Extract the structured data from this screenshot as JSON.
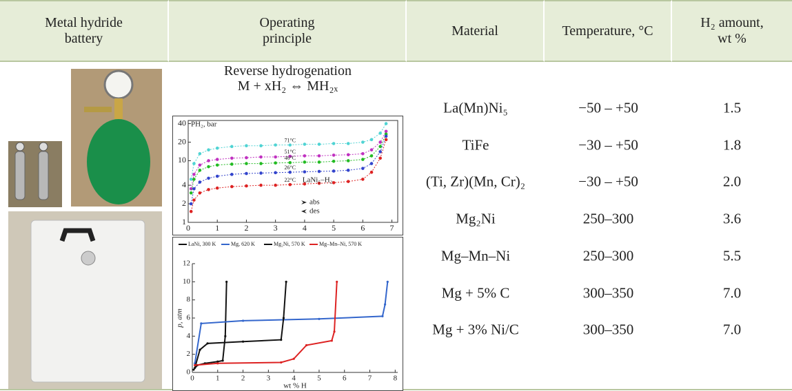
{
  "header": [
    "Metal hydride battery",
    "Operating principle",
    "Material",
    "Temperature, °C",
    "H₂ amount, wt %"
  ],
  "principle": {
    "title": "Reverse hydrogenation",
    "equation": "M + xH₂ ⇔ MH₂ₓ"
  },
  "rows": [
    [
      "La(Mn)Ni₅",
      "−50 – +50",
      "1.5"
    ],
    [
      "TiFe",
      "−30 – +50",
      "1.8"
    ],
    [
      "(Ti, Zr)(Mn, Cr)₂",
      "−30 – +50",
      "2.0"
    ],
    [
      "Mg₂Ni",
      "250–300",
      "3.6"
    ],
    [
      "Mg–Mn–Ni",
      "250–300",
      "5.5"
    ],
    [
      "Mg + 5% C",
      "300–350",
      "7.0"
    ],
    [
      "Mg + 3% Ni/C",
      "300–350",
      "7.0"
    ]
  ],
  "chart_data": [
    {
      "type": "line",
      "y_label": "PH₂, bar",
      "log_y": true,
      "annotation": "LaNi₅–H₂",
      "legend": [
        "abs",
        "des"
      ],
      "x": [
        0.1,
        0.2,
        0.4,
        0.7,
        1,
        1.5,
        2,
        2.5,
        3,
        3.5,
        4,
        4.5,
        5,
        5.5,
        6,
        6.3,
        6.6,
        6.8
      ],
      "xlim": [
        0,
        7.2
      ],
      "xticks": [
        0,
        1,
        2,
        3,
        4,
        5,
        6,
        7
      ],
      "ylim": [
        1,
        45
      ],
      "yticks": [
        1,
        2,
        4,
        10,
        20,
        40
      ],
      "series": [
        {
          "name": "71°C",
          "color": "#4fd3d3",
          "values": [
            5,
            9,
            13,
            15,
            16,
            17,
            17.5,
            17.5,
            18,
            18,
            18.5,
            18.5,
            19,
            19,
            20,
            22,
            28,
            40
          ]
        },
        {
          "name": "51°C",
          "color": "#c030c0",
          "values": [
            3.5,
            6,
            8.5,
            10,
            10.5,
            11,
            11.2,
            11.5,
            11.5,
            11.8,
            12,
            12,
            12.3,
            12.5,
            13,
            15,
            20,
            30
          ]
        },
        {
          "name": "46°C",
          "color": "#22bb22",
          "values": [
            3,
            5,
            7,
            8,
            8.5,
            8.8,
            9,
            9,
            9.2,
            9.3,
            9.5,
            9.5,
            9.8,
            10,
            10.5,
            12,
            17,
            27
          ]
        },
        {
          "name": "26°C",
          "color": "#3344cc",
          "values": [
            2,
            3.5,
            4.5,
            5.2,
            5.6,
            6,
            6.2,
            6.3,
            6.4,
            6.5,
            6.6,
            6.7,
            6.8,
            7,
            7.5,
            9,
            14,
            25
          ]
        },
        {
          "name": "22°C",
          "color": "#dd2222",
          "values": [
            1.5,
            2.3,
            3,
            3.4,
            3.6,
            3.8,
            3.9,
            4,
            4,
            4.1,
            4.2,
            4.3,
            4.4,
            4.6,
            5,
            6.5,
            11,
            22
          ]
        }
      ]
    },
    {
      "type": "line",
      "y_label": "p, atm",
      "x_label": "wt % H",
      "log_y": false,
      "xlim": [
        0,
        8.1
      ],
      "xticks": [
        0,
        1,
        2,
        3,
        4,
        5,
        6,
        7,
        8
      ],
      "ylim": [
        0,
        12
      ],
      "yticks": [
        0,
        2,
        4,
        6,
        8,
        10,
        12
      ],
      "series": [
        {
          "name": "LaNi, 300 K",
          "color": "#111111",
          "x": [
            0.05,
            0.2,
            0.5,
            1,
            1.2,
            1.3,
            1.35
          ],
          "values": [
            0.3,
            0.8,
            1.0,
            1.2,
            1.3,
            4,
            10
          ]
        },
        {
          "name": "Mg, 620 K",
          "color": "#3366cc",
          "x": [
            0.1,
            0.35,
            2,
            5,
            7.5,
            7.6,
            7.7
          ],
          "values": [
            1,
            5.4,
            5.7,
            5.9,
            6.2,
            7.5,
            10
          ]
        },
        {
          "name": "Mg₂Ni, 570 K",
          "color": "#111111",
          "x": [
            0.1,
            0.3,
            0.6,
            2,
            3.5,
            3.6,
            3.7
          ],
          "values": [
            0.5,
            2.5,
            3.2,
            3.4,
            3.6,
            6,
            10
          ]
        },
        {
          "name": "Mg–Mn–Ni, 570 K",
          "color": "#dd2222",
          "x": [
            0.1,
            1,
            3.5,
            4,
            4.5,
            5.5,
            5.6,
            5.7
          ],
          "values": [
            0.8,
            1,
            1.1,
            1.5,
            3,
            3.5,
            4.5,
            10
          ]
        }
      ]
    }
  ]
}
